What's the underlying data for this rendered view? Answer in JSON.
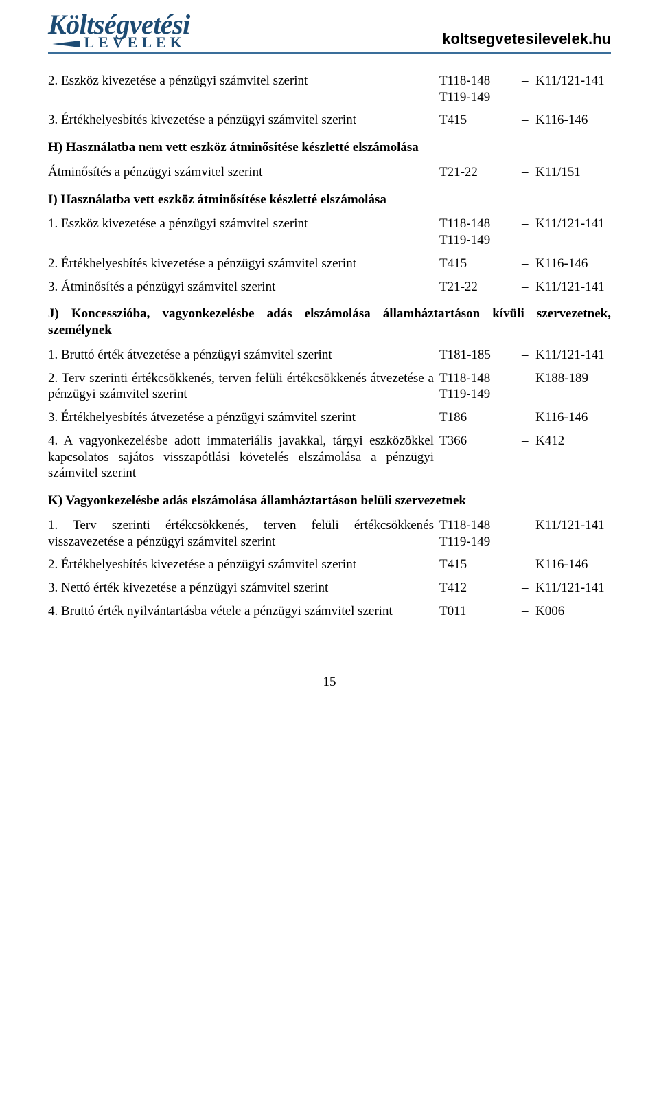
{
  "header": {
    "logo_top": "Költségvetési",
    "logo_bottom": "LEVELEK",
    "url": "koltsegvetesilevelek.hu"
  },
  "rows_top": [
    {
      "desc": "2. Eszköz kivezetése a pénzügyi számvitel szerint",
      "c2a": "T118-148",
      "c2b": "T119-149",
      "c3": "K11/121-141"
    },
    {
      "desc": "3. Értékhelyesbítés kivezetése a pénzügyi számvitel szerint",
      "c2a": "T415",
      "c3": "K116-146"
    }
  ],
  "section_h": {
    "title": "H) Használatba nem vett eszköz átminősítése készletté elszámolása",
    "rows": [
      {
        "desc": "Átminősítés a pénzügyi számvitel szerint",
        "c2a": "T21-22",
        "c3": "K11/151"
      }
    ]
  },
  "section_i": {
    "title": "I) Használatba vett eszköz átminősítése készletté elszámolása",
    "rows": [
      {
        "desc": "1. Eszköz kivezetése a pénzügyi számvitel szerint",
        "c2a": "T118-148",
        "c2b": "T119-149",
        "c3": "K11/121-141"
      },
      {
        "desc": "2. Értékhelyesbítés kivezetése a pénzügyi számvitel szerint",
        "c2a": "T415",
        "c3": "K116-146"
      },
      {
        "desc": "3. Átminősítés a pénzügyi számvitel szerint",
        "c2a": "T21-22",
        "c3": "K11/121-141"
      }
    ]
  },
  "section_j": {
    "title": "J) Koncesszióba, vagyonkezelésbe adás elszámolása államháztartáson kívüli szervezetnek, személynek",
    "rows": [
      {
        "desc": "1. Bruttó érték átvezetése a pénzügyi számvitel szerint",
        "c2a": "T181-185",
        "c3": "K11/121-141"
      },
      {
        "desc": "2. Terv szerinti értékcsökkenés, terven felüli értékcsökkenés átvezetése a pénzügyi számvitel szerint",
        "c2a": "T118-148",
        "c2b": "T119-149",
        "c3": "K188-189"
      },
      {
        "desc": "3. Értékhelyesbítés átvezetése a pénzügyi számvitel szerint",
        "c2a": "T186",
        "c3": "K116-146"
      },
      {
        "desc": "4. A vagyonkezelésbe adott immateriális javakkal, tárgyi eszközökkel kapcsolatos sajátos visszapótlási követelés elszámolása a pénzügyi számvitel szerint",
        "c2a": "T366",
        "c3": "K412"
      }
    ]
  },
  "section_k": {
    "title": "K) Vagyonkezelésbe adás elszámolása államháztartáson belüli szervezetnek",
    "rows": [
      {
        "desc": "1. Terv szerinti értékcsökkenés, terven felüli értékcsökkenés visszavezetése a pénzügyi számvitel szerint",
        "c2a": "T118-148",
        "c2b": "T119-149",
        "c3": "K11/121-141"
      },
      {
        "desc": "2. Értékhelyesbítés kivezetése a pénzügyi számvitel szerint",
        "c2a": "T415",
        "c3": "K116-146"
      },
      {
        "desc": "3. Nettó érték kivezetése a pénzügyi számvitel szerint",
        "c2a": "T412",
        "c3": "K11/121-141"
      },
      {
        "desc": "4. Bruttó érték nyilvántartásba vétele a pénzügyi számvitel szerint",
        "c2a": "T011",
        "c3": "K006"
      }
    ]
  },
  "page_number": "15"
}
